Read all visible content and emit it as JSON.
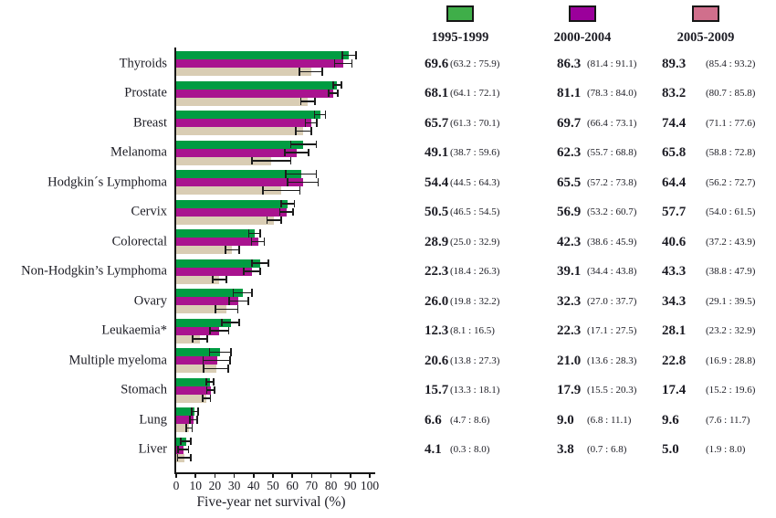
{
  "legend": {
    "items": [
      {
        "label": "1995-1999",
        "swatch_color": "#3fae49"
      },
      {
        "label": "2000-2004",
        "swatch_color": "#9b009b"
      },
      {
        "label": "2005-2009",
        "swatch_color": "#d06f8c"
      }
    ]
  },
  "chart_data": {
    "type": "bar",
    "orientation": "horizontal",
    "title": "",
    "xlabel": "Five-year net survival (%)",
    "ylabel": "",
    "xlim": [
      0,
      100
    ],
    "xticks": [
      0,
      10,
      20,
      30,
      40,
      50,
      60,
      70,
      80,
      90,
      100
    ],
    "grid": false,
    "legend_position": "top-right-panel",
    "bar_row_order_top_to_bottom": [
      "2005-2009",
      "2000-2004",
      "1995-1999"
    ],
    "error_bars": "95% confidence interval, caps on both ends",
    "categories": [
      "Thyroids",
      "Prostate",
      "Breast",
      "Melanoma",
      "Hodgkin´s Lymphoma",
      "Cervix",
      "Colorectal",
      "Non-Hodgkin’s Lymphoma",
      "Ovary",
      "Leukaemia*",
      "Multiple myeloma",
      "Stomach",
      "Lung",
      "Liver"
    ],
    "series": [
      {
        "name": "1995-1999",
        "color": "#d9cdb4",
        "values": [
          69.6,
          68.1,
          65.7,
          49.1,
          54.4,
          50.5,
          28.9,
          22.3,
          26.0,
          12.3,
          20.6,
          15.7,
          6.6,
          4.1
        ],
        "ci_low": [
          63.2,
          64.1,
          61.3,
          38.7,
          44.5,
          46.5,
          25.0,
          18.4,
          19.8,
          8.1,
          13.8,
          13.3,
          4.7,
          0.3
        ],
        "ci_high": [
          75.9,
          72.1,
          70.1,
          59.6,
          64.3,
          54.5,
          32.9,
          26.3,
          32.2,
          16.5,
          27.3,
          18.1,
          8.6,
          8.0
        ]
      },
      {
        "name": "2000-2004",
        "color": "#a9138f",
        "values": [
          86.3,
          81.1,
          69.7,
          62.3,
          65.5,
          56.9,
          42.3,
          39.1,
          32.3,
          22.3,
          21.0,
          17.9,
          9.0,
          3.8
        ],
        "ci_low": [
          81.4,
          78.3,
          66.4,
          55.7,
          57.2,
          53.2,
          38.6,
          34.4,
          27.0,
          17.1,
          13.6,
          15.5,
          6.8,
          0.7
        ],
        "ci_high": [
          91.1,
          84.0,
          73.1,
          68.8,
          73.8,
          60.7,
          45.9,
          43.8,
          37.7,
          27.5,
          28.3,
          20.3,
          11.1,
          6.8
        ]
      },
      {
        "name": "2005-2009",
        "color": "#009c42",
        "values": [
          89.3,
          83.2,
          74.4,
          65.8,
          64.4,
          57.7,
          40.6,
          43.3,
          34.3,
          28.1,
          22.8,
          17.4,
          9.6,
          5.0
        ],
        "ci_low": [
          85.4,
          80.7,
          71.1,
          58.8,
          56.2,
          54.0,
          37.2,
          38.8,
          29.1,
          23.2,
          16.9,
          15.2,
          7.6,
          1.9
        ],
        "ci_high": [
          93.2,
          85.8,
          77.6,
          72.8,
          72.7,
          61.5,
          43.9,
          47.9,
          39.5,
          32.9,
          28.8,
          19.6,
          11.7,
          8.0
        ]
      }
    ]
  },
  "table": {
    "columns": [
      "1995-1999",
      "2000-2004",
      "2005-2009"
    ],
    "rows": [
      {
        "label": "Thyroids",
        "cells": [
          {
            "value": "69.6",
            "ci": "(63.2 : 75.9)"
          },
          {
            "value": "86.3",
            "ci": "(81.4 : 91.1)"
          },
          {
            "value": "89.3",
            "ci": "(85.4 : 93.2)"
          }
        ]
      },
      {
        "label": "Prostate",
        "cells": [
          {
            "value": "68.1",
            "ci": "(64.1 : 72.1)"
          },
          {
            "value": "81.1",
            "ci": "(78.3 : 84.0)"
          },
          {
            "value": "83.2",
            "ci": "(80.7 : 85.8)"
          }
        ]
      },
      {
        "label": "Breast",
        "cells": [
          {
            "value": "65.7",
            "ci": "(61.3 : 70.1)"
          },
          {
            "value": "69.7",
            "ci": "(66.4 : 73.1)"
          },
          {
            "value": "74.4",
            "ci": "(71.1 : 77.6)"
          }
        ]
      },
      {
        "label": "Melanoma",
        "cells": [
          {
            "value": "49.1",
            "ci": "(38.7 : 59.6)"
          },
          {
            "value": "62.3",
            "ci": "(55.7 : 68.8)"
          },
          {
            "value": "65.8",
            "ci": "(58.8 : 72.8)"
          }
        ]
      },
      {
        "label": "Hodgkin´s Lymphoma",
        "cells": [
          {
            "value": "54.4",
            "ci": "(44.5 : 64.3)"
          },
          {
            "value": "65.5",
            "ci": "(57.2 : 73.8)"
          },
          {
            "value": "64.4",
            "ci": "(56.2 : 72.7)"
          }
        ]
      },
      {
        "label": "Cervix",
        "cells": [
          {
            "value": "50.5",
            "ci": "(46.5 : 54.5)"
          },
          {
            "value": "56.9",
            "ci": "(53.2 : 60.7)"
          },
          {
            "value": "57.7",
            "ci": "(54.0 : 61.5)"
          }
        ]
      },
      {
        "label": "Colorectal",
        "cells": [
          {
            "value": "28.9",
            "ci": "(25.0 : 32.9)"
          },
          {
            "value": "42.3",
            "ci": "(38.6 : 45.9)"
          },
          {
            "value": "40.6",
            "ci": "(37.2 : 43.9)"
          }
        ]
      },
      {
        "label": "Non-Hodgkin’s Lymphoma",
        "cells": [
          {
            "value": "22.3",
            "ci": "(18.4 : 26.3)"
          },
          {
            "value": "39.1",
            "ci": "(34.4 : 43.8)"
          },
          {
            "value": "43.3",
            "ci": "(38.8 : 47.9)"
          }
        ]
      },
      {
        "label": "Ovary",
        "cells": [
          {
            "value": "26.0",
            "ci": "(19.8 : 32.2)"
          },
          {
            "value": "32.3",
            "ci": "(27.0 : 37.7)"
          },
          {
            "value": "34.3",
            "ci": "(29.1 : 39.5)"
          }
        ]
      },
      {
        "label": "Leukaemia*",
        "cells": [
          {
            "value": "12.3",
            "ci": "(8.1 : 16.5)"
          },
          {
            "value": "22.3",
            "ci": "(17.1 : 27.5)"
          },
          {
            "value": "28.1",
            "ci": "(23.2 : 32.9)"
          }
        ]
      },
      {
        "label": "Multiple myeloma",
        "cells": [
          {
            "value": "20.6",
            "ci": "(13.8 : 27.3)"
          },
          {
            "value": "21.0",
            "ci": "(13.6 : 28.3)"
          },
          {
            "value": "22.8",
            "ci": "(16.9 : 28.8)"
          }
        ]
      },
      {
        "label": "Stomach",
        "cells": [
          {
            "value": "15.7",
            "ci": "(13.3 : 18.1)"
          },
          {
            "value": "17.9",
            "ci": "(15.5 : 20.3)"
          },
          {
            "value": "17.4",
            "ci": "(15.2 : 19.6)"
          }
        ]
      },
      {
        "label": "Lung",
        "cells": [
          {
            "value": "6.6",
            "ci": "(4.7 : 8.6)"
          },
          {
            "value": "9.0",
            "ci": "(6.8 : 11.1)"
          },
          {
            "value": "9.6",
            "ci": "(7.6 : 11.7)"
          }
        ]
      },
      {
        "label": "Liver",
        "cells": [
          {
            "value": "4.1",
            "ci": "(0.3 : 8.0)"
          },
          {
            "value": "3.8",
            "ci": "(0.7 : 6.8)"
          },
          {
            "value": "5.0",
            "ci": "(1.9 : 8.0)"
          }
        ]
      }
    ]
  }
}
